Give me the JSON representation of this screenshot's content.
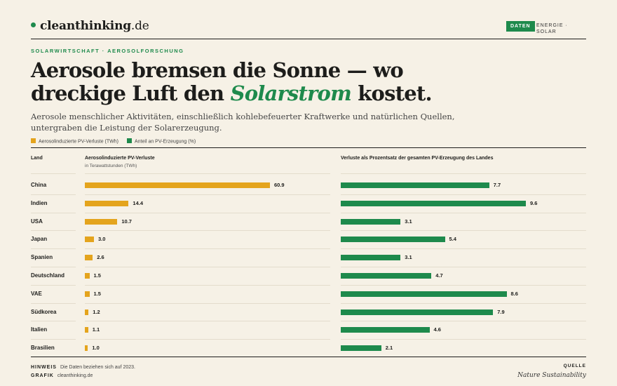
{
  "brand": {
    "name": "cleanthinking",
    "tld": ".de"
  },
  "badge": "DATEN",
  "category": "ENERGIE · SOLAR",
  "kicker": "SOLARWIRTSCHAFT · AEROSOLFORSCHUNG",
  "title": {
    "line1": "Aerosole bremsen die Sonne — wo",
    "line2_pre": "dreckige Luft den ",
    "line2_hl": "Solarstrom",
    "line2_post": " kostet."
  },
  "subtitle": "Aerosole menschlicher Aktivitäten, einschließlich kohlebefeuerter Kraftwerke und natürlichen Quellen, untergraben die Leistung der Solarerzeugung.",
  "colors": {
    "orange": "#e4a41d",
    "green": "#1e8a4c"
  },
  "chart_data": {
    "type": "bar",
    "legend": [
      "Aerosolinduzierte PV-Verluste (TWh)",
      "Anteil an PV-Erzeugung (%)"
    ],
    "column_headers": {
      "country": "Land",
      "losses": "Aerosolinduzierte PV-Verluste",
      "losses_unit": "in Terawattstunden (TWh)",
      "share": "Verluste als Prozentsatz der gesamten PV-Erzeugung des Landes"
    },
    "categories": [
      "China",
      "Indien",
      "USA",
      "Japan",
      "Spanien",
      "Deutschland",
      "VAE",
      "Südkorea",
      "Italien",
      "Brasilien"
    ],
    "series": [
      {
        "name": "Aerosolinduzierte PV-Verluste (TWh)",
        "values": [
          60.9,
          14.4,
          10.7,
          3.0,
          2.6,
          1.5,
          1.5,
          1.2,
          1.1,
          1.0
        ],
        "labels": [
          "60.9",
          "14.4",
          "10.7",
          "3.0",
          "2.6",
          "1.5",
          "1.5",
          "1.2",
          "1.1",
          "1.0"
        ]
      },
      {
        "name": "Anteil an PV-Erzeugung (%)",
        "values": [
          7.7,
          9.6,
          3.1,
          5.4,
          3.1,
          4.7,
          8.6,
          7.9,
          4.6,
          2.1
        ],
        "labels": [
          "7.7",
          "9.6",
          "3.1",
          "5.4",
          "3.1",
          "4.7",
          "8.6",
          "7.9",
          "4.6",
          "2.1"
        ]
      }
    ]
  },
  "footer": {
    "note_label": "HINWEIS",
    "note": "Die Daten beziehen sich auf 2023.",
    "graphic_label": "GRAFIK",
    "graphic": "cleanthinking.de",
    "source_label": "QUELLE",
    "source": "Nature Sustainability"
  }
}
